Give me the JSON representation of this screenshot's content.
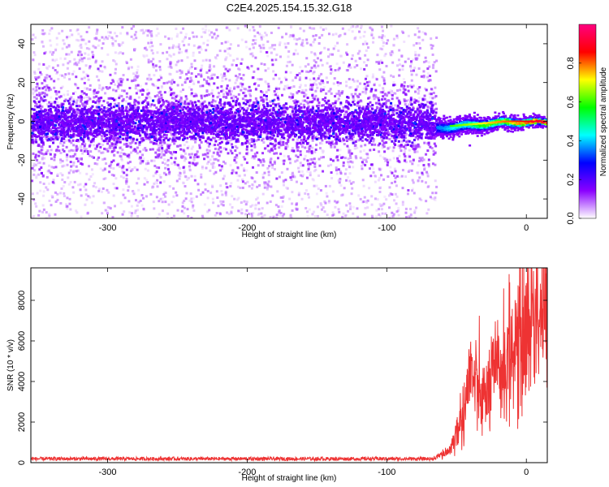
{
  "title": "C2E4.2025.154.15.32.G18",
  "chart_data": [
    {
      "type": "heatmap",
      "xlabel": "Height of straight line (km)",
      "ylabel": "Frequency (Hz)",
      "xlim": [
        -355,
        15
      ],
      "ylim": [
        -50,
        50
      ],
      "x_ticks": [
        "-300",
        "-200",
        "-100",
        "0"
      ],
      "x_tick_values": [
        -300,
        -200,
        -100,
        0
      ],
      "y_ticks": [
        "40",
        "20",
        "0",
        "-20",
        "-40"
      ],
      "y_tick_values": [
        40,
        20,
        0,
        -20,
        -40
      ],
      "colorbar": {
        "label": "Normalized spectral amplitude",
        "range": [
          0,
          1
        ],
        "ticks": [
          "0.0",
          "0.2",
          "0.4",
          "0.6",
          "0.8"
        ],
        "tick_values": [
          0,
          0.2,
          0.4,
          0.6,
          0.8
        ],
        "colors": [
          "#ffffff",
          "#8a00ff",
          "#0000ff",
          "#00ffff",
          "#00ff00",
          "#ffff00",
          "#ff0000",
          "#ff0080"
        ]
      },
      "features": {
        "noise_region_x": [
          -355,
          -65
        ],
        "signal_region_x": [
          -65,
          15
        ],
        "signal_freq_start_hz": -3,
        "signal_freq_end_hz": 0
      }
    },
    {
      "type": "line",
      "xlabel": "Height of straight line (km)",
      "ylabel": "SNR (10 * v/v)",
      "xlim": [
        -355,
        15
      ],
      "ylim": [
        0,
        9600
      ],
      "x_ticks": [
        "-300",
        "-200",
        "-100",
        "0"
      ],
      "x_tick_values": [
        -300,
        -200,
        -100,
        0
      ],
      "y_ticks": [
        "0",
        "2000",
        "4000",
        "6000",
        "8000"
      ],
      "y_tick_values": [
        0,
        2000,
        4000,
        6000,
        8000
      ],
      "line_color": "#ee3333",
      "series": [
        {
          "x": [
            -355,
            -300,
            -200,
            -100,
            -66,
            -55,
            -50,
            -45,
            -40,
            -35,
            -30,
            -25,
            -20,
            -15,
            -10,
            -5,
            0,
            5,
            10,
            14
          ],
          "values": [
            200,
            200,
            200,
            200,
            200,
            600,
            1500,
            2500,
            4500,
            3500,
            3000,
            4000,
            4500,
            5000,
            5500,
            6000,
            6500,
            7500,
            7600,
            7200
          ]
        }
      ]
    }
  ]
}
